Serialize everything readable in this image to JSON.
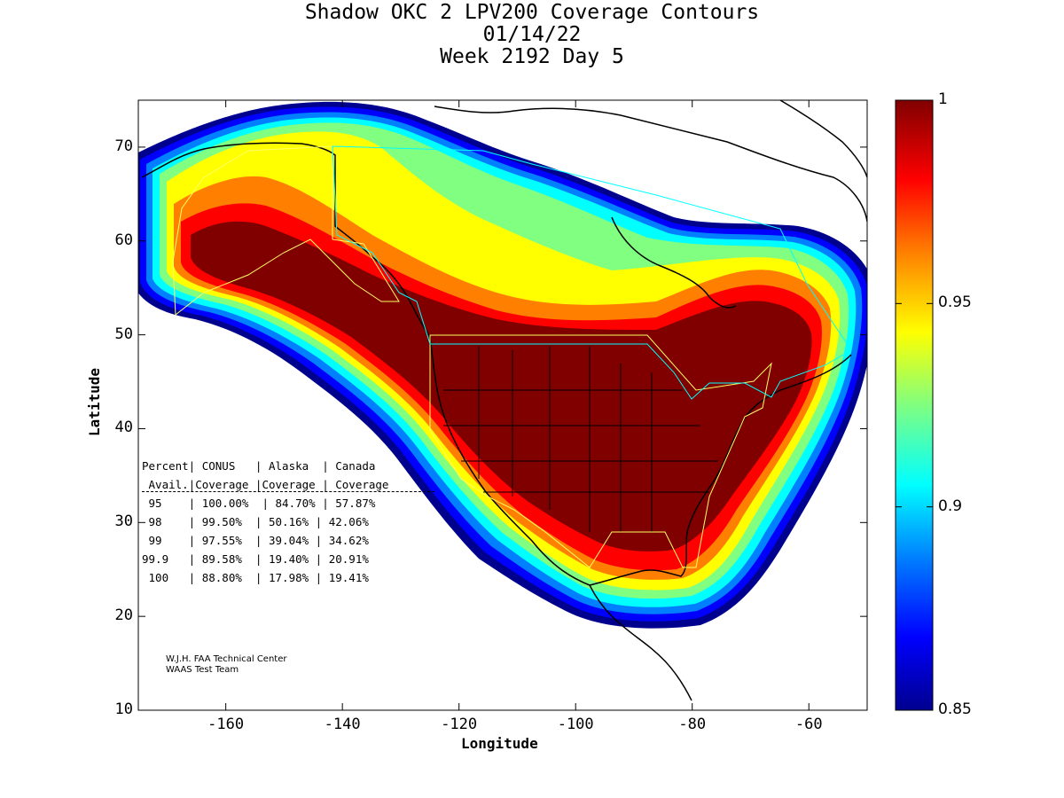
{
  "title_lines": [
    "Shadow OKC 2 LPV200 Coverage Contours",
    "01/14/22",
    "Week 2192 Day 5"
  ],
  "map": {
    "xlabel": "Longitude",
    "ylabel": "Latitude",
    "xlim": [
      -175,
      -50
    ],
    "ylim": [
      10,
      75
    ],
    "x_ticks": [
      -160,
      -140,
      -120,
      -100,
      -80,
      -60
    ],
    "y_ticks": [
      10,
      20,
      30,
      40,
      50,
      60,
      70
    ]
  },
  "colorbar": {
    "min": 0.85,
    "max": 1,
    "tick_values": [
      0.85,
      0.9,
      0.95,
      1
    ],
    "tick_labels": [
      "0.85",
      "0.9",
      "0.95",
      "1"
    ],
    "colors": [
      "#00008f",
      "#0000ff",
      "#0080ff",
      "#00ffff",
      "#80ff80",
      "#ffff00",
      "#ff8000",
      "#ff0000",
      "#800000"
    ]
  },
  "stats_table": {
    "header_lines": [
      "Percent| CONUS   | Alaska  | Canada",
      " Avail.|Coverage |Coverage | Coverage"
    ],
    "rows": [
      " 95    | 100.00%  | 84.70% | 57.87%",
      " 98    | 99.50%  | 50.16% | 42.06%",
      " 99    | 97.55%  | 39.04% | 34.62%",
      "99.9   | 89.58%  | 19.40% | 20.91%",
      " 100   | 88.80%  | 17.98% | 19.41%"
    ]
  },
  "credit_lines": [
    "W.J.H. FAA Technical Center",
    "WAAS Test Team"
  ]
}
